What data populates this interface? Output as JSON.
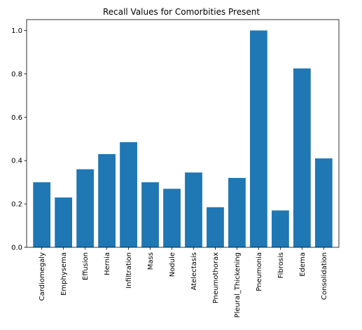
{
  "chart_data": {
    "type": "bar",
    "title": "Recall Values for Comorbities Present",
    "xlabel": "",
    "ylabel": "",
    "categories": [
      "Cardiomegaly",
      "Emphysema",
      "Effusion",
      "Hernia",
      "Infiltration",
      "Mass",
      "Nodule",
      "Atelectasis",
      "Pneumothorax",
      "Pleural_Thickening",
      "Pneumonia",
      "Fibrosis",
      "Edema",
      "Consolidation"
    ],
    "values": [
      0.3,
      0.23,
      0.36,
      0.43,
      0.485,
      0.3,
      0.27,
      0.345,
      0.185,
      0.32,
      1.0,
      0.17,
      0.825,
      0.41
    ],
    "ylim": [
      0,
      1.05
    ],
    "yticks": [
      "0.0",
      "0.2",
      "0.4",
      "0.6",
      "0.8",
      "1.0"
    ],
    "bar_color": "#1f77b4",
    "grid": false,
    "legend": "none"
  }
}
